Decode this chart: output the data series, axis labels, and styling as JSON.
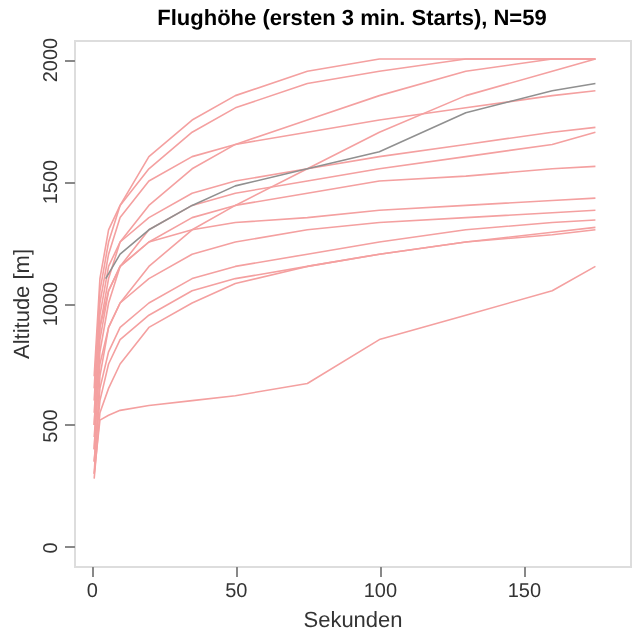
{
  "chart_data": {
    "type": "line",
    "title": "Flughöhe (ersten 3 min. Starts), N=59",
    "xlabel": "Sekunden",
    "ylabel": "Altitude [m]",
    "x": [
      1,
      3,
      6,
      10,
      20,
      35,
      50,
      75,
      100,
      130,
      160,
      175
    ],
    "series": [
      {
        "color": "#f4a0a0",
        "values": [
          300,
          700,
          900,
          1000,
          1100,
          1200,
          1250,
          1300,
          1330,
          1350,
          1370,
          1380
        ]
      },
      {
        "color": "#f4a0a0",
        "values": [
          400,
          800,
          1000,
          1150,
          1300,
          1400,
          1450,
          1500,
          1550,
          1600,
          1650,
          1700
        ]
      },
      {
        "color": "#f4a0a0",
        "values": [
          500,
          900,
          1100,
          1250,
          1400,
          1550,
          1650,
          1750,
          1850,
          1950,
          2000,
          2000
        ]
      },
      {
        "color": "#f4a0a0",
        "values": [
          350,
          600,
          750,
          850,
          950,
          1050,
          1100,
          1150,
          1200,
          1250,
          1280,
          1300
        ]
      },
      {
        "color": "#f4a0a0",
        "values": [
          450,
          750,
          900,
          1000,
          1150,
          1300,
          1400,
          1550,
          1700,
          1850,
          1950,
          2000
        ]
      },
      {
        "color": "#f4a0a0",
        "values": [
          600,
          1000,
          1200,
          1350,
          1500,
          1600,
          1650,
          1700,
          1750,
          1800,
          1850,
          1870
        ]
      },
      {
        "color": "#f4a0a0",
        "values": [
          280,
          550,
          650,
          750,
          900,
          1000,
          1080,
          1150,
          1200,
          1250,
          1290,
          1310
        ]
      },
      {
        "color": "#f4a0a0",
        "values": [
          700,
          1100,
          1300,
          1400,
          1550,
          1700,
          1800,
          1900,
          1950,
          2000,
          2000,
          2000
        ]
      },
      {
        "color": "#f4a0a0",
        "values": [
          400,
          850,
          1050,
          1150,
          1250,
          1300,
          1330,
          1350,
          1380,
          1400,
          1420,
          1430
        ]
      },
      {
        "color": "#f4a0a0",
        "values": [
          500,
          950,
          1150,
          1250,
          1350,
          1450,
          1500,
          1550,
          1600,
          1650,
          1700,
          1720
        ]
      },
      {
        "color": "#f4a0a0",
        "values": [
          300,
          520,
          540,
          560,
          580,
          600,
          620,
          670,
          850,
          950,
          1050,
          1150
        ]
      },
      {
        "color": "#f4a0a0",
        "values": [
          550,
          900,
          1050,
          1150,
          1250,
          1350,
          1400,
          1450,
          1500,
          1520,
          1550,
          1560
        ]
      },
      {
        "color": "#f4a0a0",
        "values": [
          350,
          650,
          800,
          900,
          1000,
          1100,
          1150,
          1200,
          1250,
          1300,
          1330,
          1340
        ]
      },
      {
        "color": "#f4a0a0",
        "values": [
          650,
          1050,
          1250,
          1400,
          1600,
          1750,
          1850,
          1950,
          2000,
          2000,
          2000,
          2000
        ]
      },
      {
        "color": "#909090",
        "x": [
          5,
          10,
          20,
          35,
          50,
          75,
          100,
          130,
          160,
          175
        ],
        "values": [
          1100,
          1200,
          1300,
          1400,
          1480,
          1550,
          1620,
          1780,
          1870,
          1900
        ]
      }
    ],
    "xlim": [
      -6,
      187
    ],
    "xticks": [
      0,
      50,
      100,
      150
    ],
    "ylim": [
      -78,
      2078
    ],
    "yticks": [
      0,
      500,
      1000,
      1500,
      2000
    ],
    "grid": false,
    "legend": false,
    "marker": "none",
    "line_style": "solid"
  }
}
